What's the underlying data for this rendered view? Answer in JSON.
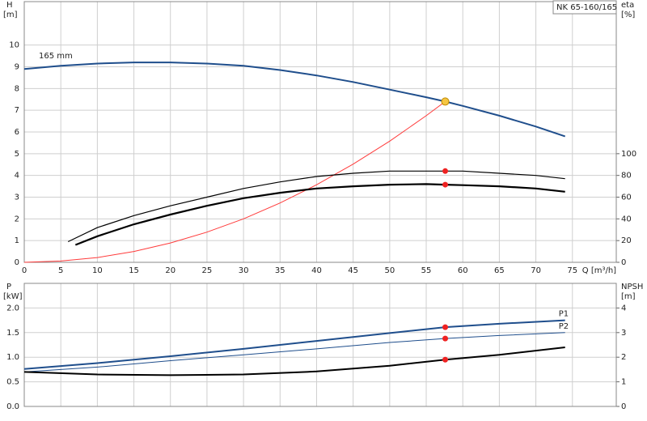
{
  "chart_data": [
    {
      "type": "line",
      "title": "NK 65-160/165",
      "xlabel": "Q [m³/h]",
      "ylabel": "H",
      "ylabel_unit": "[m]",
      "y2label": "eta",
      "y2label_unit": "[%]",
      "xlim": [
        0,
        81
      ],
      "xticks": [
        0,
        5,
        10,
        15,
        20,
        25,
        30,
        35,
        40,
        45,
        50,
        55,
        60,
        65,
        70,
        75
      ],
      "ylim": [
        0,
        12
      ],
      "yticks": [
        0,
        1,
        2,
        3,
        4,
        5,
        6,
        7,
        8,
        9,
        10
      ],
      "y2lim": [
        0,
        240
      ],
      "y2ticks": [
        0,
        20,
        40,
        60,
        80,
        100
      ],
      "grid": true,
      "series": [
        {
          "name": "165 mm",
          "color": "#1f4e8c",
          "width": 2,
          "x": [
            0,
            5,
            10,
            15,
            20,
            25,
            30,
            35,
            40,
            45,
            50,
            55,
            57.6,
            60,
            65,
            70,
            74
          ],
          "values": [
            8.9,
            9.05,
            9.15,
            9.2,
            9.2,
            9.15,
            9.05,
            8.85,
            8.6,
            8.3,
            7.95,
            7.6,
            7.4,
            7.2,
            6.75,
            6.25,
            5.8
          ]
        },
        {
          "color": "#ff3b3b",
          "width": 1,
          "x": [
            0,
            5,
            10,
            15,
            20,
            25,
            30,
            35,
            40,
            45,
            50,
            55,
            57.6
          ],
          "values": [
            0,
            0.06,
            0.22,
            0.5,
            0.89,
            1.39,
            2.0,
            2.73,
            3.57,
            4.52,
            5.58,
            6.75,
            7.4
          ]
        },
        {
          "color": "#000000",
          "width": 1.2,
          "axis": "y2",
          "x": [
            6,
            10,
            15,
            20,
            25,
            30,
            35,
            40,
            45,
            50,
            55,
            57.6,
            60,
            65,
            70,
            74
          ],
          "values": [
            19,
            32,
            43,
            52,
            60,
            68,
            74,
            79,
            82,
            84,
            84,
            84,
            84,
            82,
            80,
            77
          ]
        },
        {
          "color": "#000000",
          "width": 2.2,
          "axis": "y2",
          "x": [
            7,
            10,
            15,
            20,
            25,
            30,
            35,
            40,
            45,
            50,
            55,
            57.6,
            60,
            65,
            70,
            74
          ],
          "values": [
            16,
            24,
            35,
            44,
            52,
            59,
            64,
            68,
            70,
            71.5,
            72,
            71.5,
            71,
            70,
            68,
            65
          ]
        }
      ],
      "points": [
        {
          "x": 57.6,
          "value": 7.4,
          "color": "#f5c542"
        },
        {
          "x": 57.6,
          "value": 84,
          "color": "#ee2222",
          "axis": "y2"
        },
        {
          "x": 57.6,
          "value": 71.5,
          "color": "#ee2222",
          "axis": "y2"
        }
      ]
    },
    {
      "type": "line",
      "ylabel": "P",
      "ylabel_unit": "[kW]",
      "y2label": "NPSH",
      "y2label_unit": "[m]",
      "xlim": [
        0,
        81
      ],
      "ylim": [
        0,
        2.5
      ],
      "yticks": [
        {
          "value": 0,
          "label": "0.0"
        },
        0.5,
        {
          "value": 1,
          "label": "1.0"
        },
        1.5,
        {
          "value": 2,
          "label": "2.0"
        }
      ],
      "y2lim": [
        0,
        5
      ],
      "y2ticks": [
        0,
        1,
        2,
        3,
        4
      ],
      "grid": true,
      "series": [
        {
          "name": "P1",
          "color": "#1f4e8c",
          "width": 2,
          "x": [
            0,
            10,
            20,
            30,
            40,
            50,
            57.6,
            65,
            74
          ],
          "values": [
            0.76,
            0.88,
            1.02,
            1.17,
            1.33,
            1.49,
            1.61,
            1.68,
            1.75
          ]
        },
        {
          "name": "P2",
          "color": "#1f4e8c",
          "width": 1,
          "x": [
            0,
            10,
            20,
            30,
            40,
            50,
            57.6,
            65,
            74
          ],
          "values": [
            0.7,
            0.8,
            0.93,
            1.05,
            1.17,
            1.3,
            1.38,
            1.44,
            1.5
          ]
        },
        {
          "color": "#000000",
          "width": 2,
          "axis": "y2",
          "x": [
            0,
            10,
            20,
            30,
            40,
            50,
            57.6,
            65,
            74
          ],
          "values": [
            1.4,
            1.3,
            1.27,
            1.3,
            1.42,
            1.65,
            1.9,
            2.1,
            2.4
          ]
        }
      ],
      "points": [
        {
          "x": 57.6,
          "value": 1.61,
          "color": "#ee2222"
        },
        {
          "x": 57.6,
          "value": 1.38,
          "color": "#ee2222"
        },
        {
          "x": 57.6,
          "value": 1.9,
          "color": "#ee2222",
          "axis": "y2"
        }
      ]
    }
  ]
}
